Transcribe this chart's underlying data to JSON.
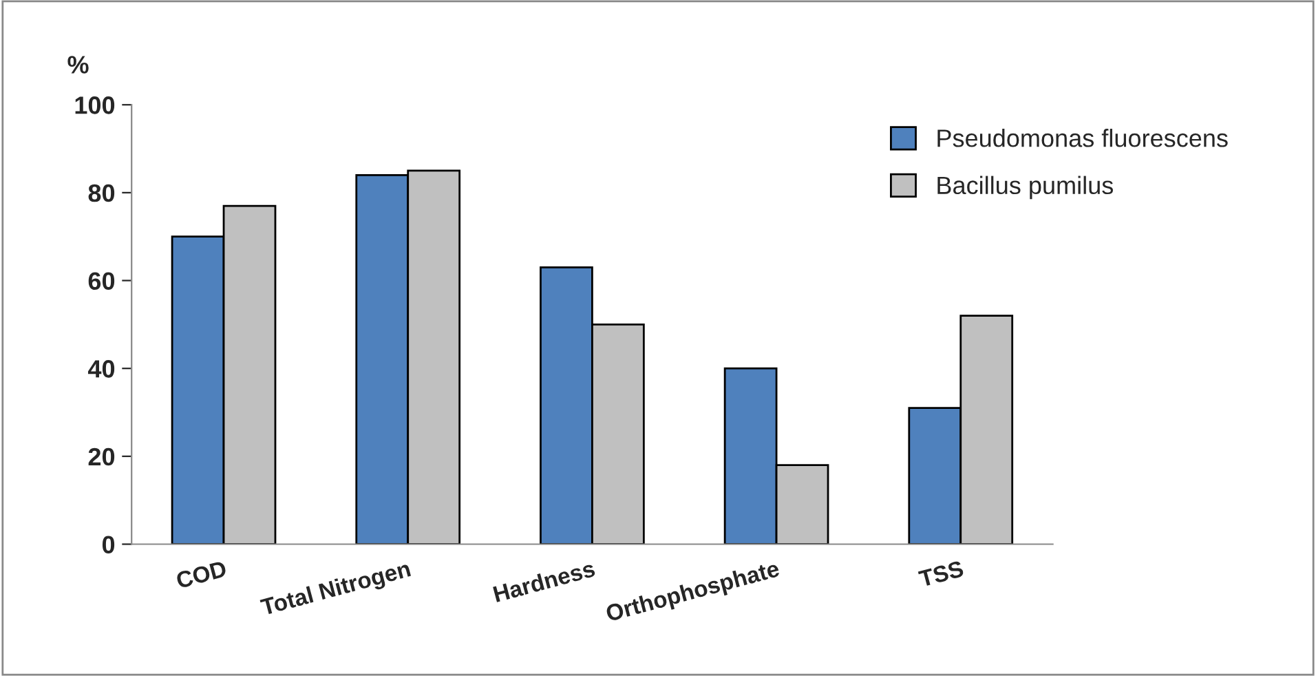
{
  "chart_data": {
    "type": "bar",
    "ylabel": "%",
    "categories": [
      "COD",
      "Total Nitrogen",
      "Hardness",
      "Orthophosphate",
      "TSS"
    ],
    "series": [
      {
        "name": "Pseudomonas fluorescens",
        "color": "#4f81bd",
        "values": [
          70,
          84,
          63,
          40,
          31
        ]
      },
      {
        "name": "Bacillus pumilus",
        "color": "#c0c0c0",
        "values": [
          77,
          85,
          50,
          18,
          52
        ]
      }
    ],
    "ylim": [
      0,
      100
    ],
    "yticks": [
      0,
      20,
      40,
      60,
      80,
      100
    ],
    "grid": false,
    "legend": "top right"
  }
}
